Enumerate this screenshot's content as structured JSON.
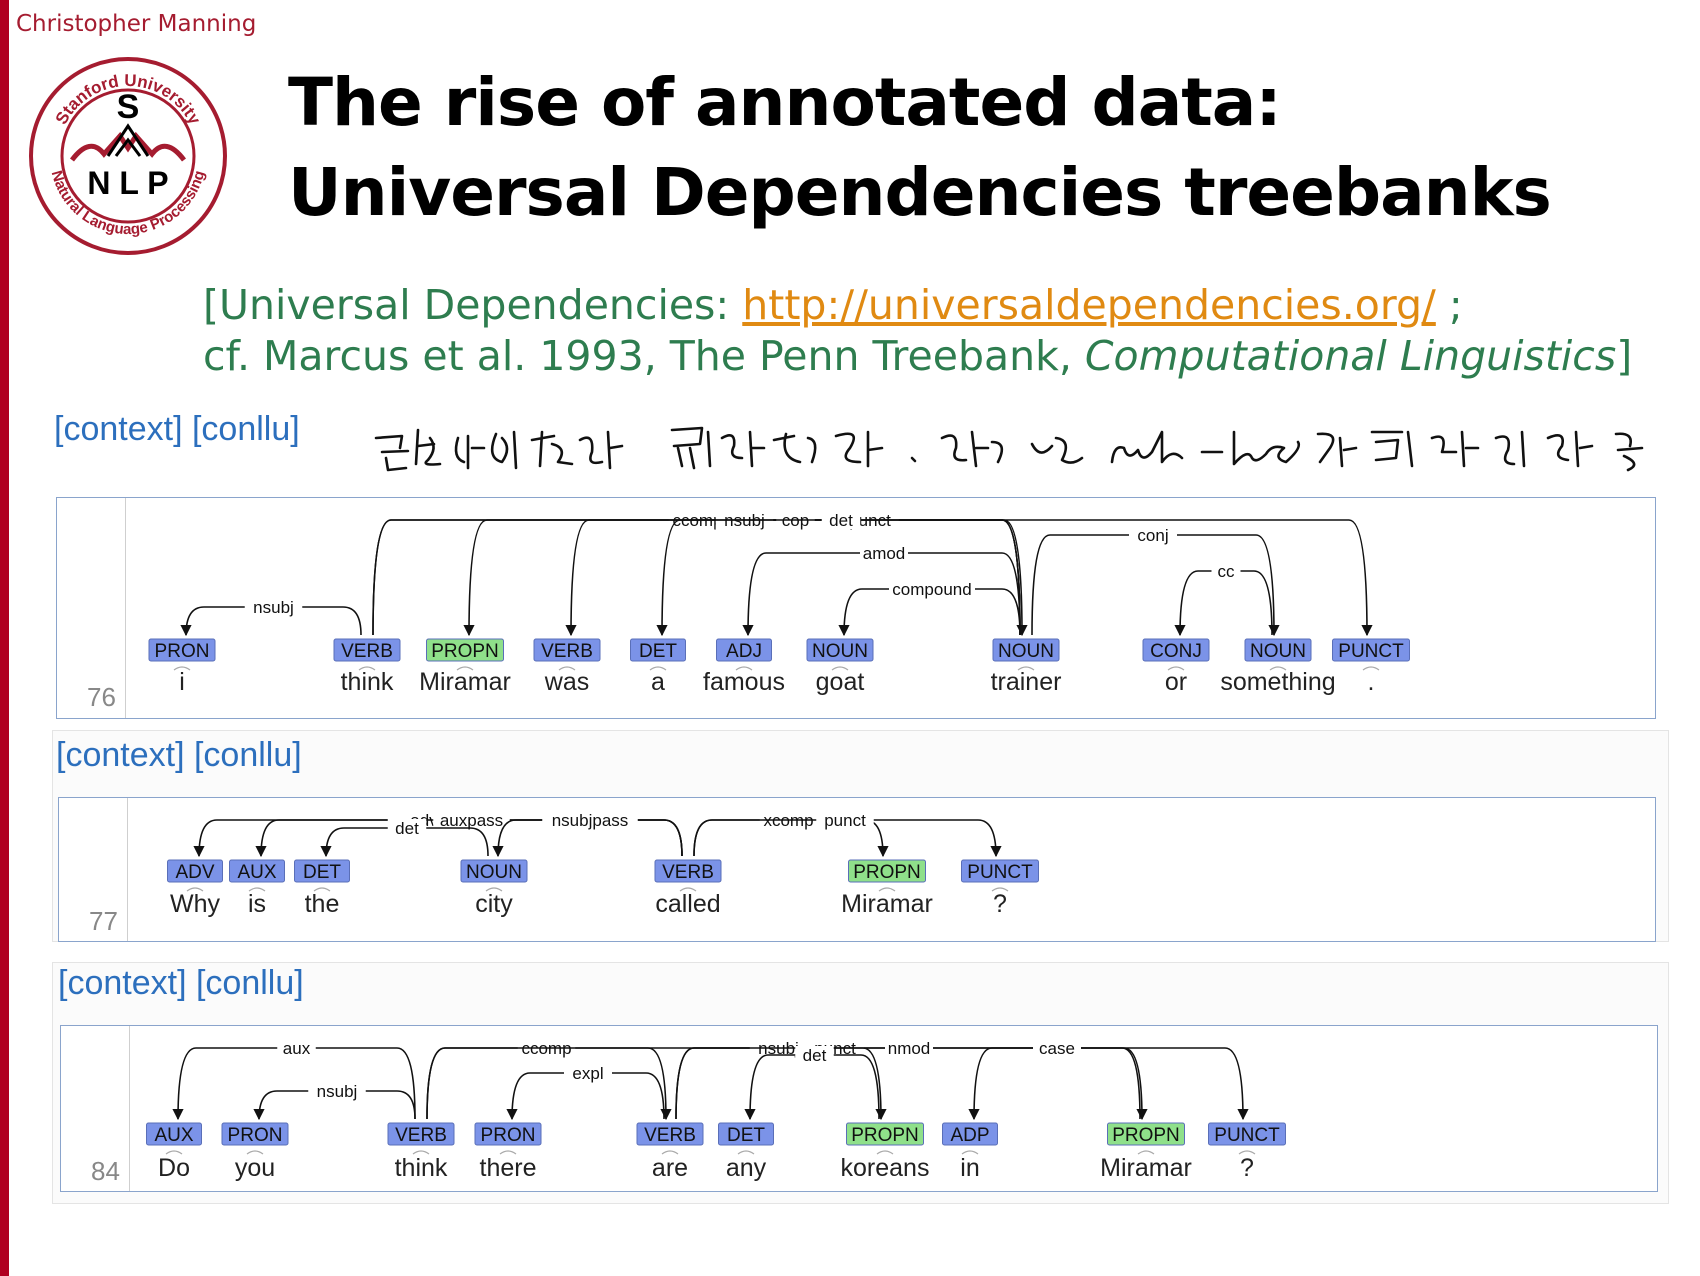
{
  "header": {
    "author": "Christopher Manning",
    "logo_text": {
      "top": "Stanford University",
      "bottom": "Natural Language Processing",
      "letter": "S",
      "acronym": "N L P"
    }
  },
  "slide": {
    "title_line1": "The rise of annotated data:",
    "title_line2": "Universal Dependencies treebanks",
    "citation": {
      "prefix": "[Universal Dependencies: ",
      "link": "http://universaldependencies.org/",
      "suffix": " ;",
      "line2_prefix": "cf. Marcus et al. 1993, The Penn Treebank, ",
      "line2_italic": "Computational Linguistics",
      "line2_suffix": "]"
    },
    "handwritten_note": "문장 사이의 관계를 태깅하는 방식. 일일이 다른 rule-base가 효과적이지 않아 등장"
  },
  "colors": {
    "pos_blue": "#7b93e8",
    "pos_green": "#8fe08a",
    "link": "#e08a12",
    "accent_red": "#a51c30",
    "cite_green": "#2e7d4f",
    "ctx_blue": "#2c6fbd"
  },
  "sentences": [
    {
      "id": "76",
      "context_label": "[context] [conllu]",
      "tokens": [
        {
          "word": "i",
          "pos": "PRON"
        },
        {
          "word": "think",
          "pos": "VERB"
        },
        {
          "word": "Miramar",
          "pos": "PROPN"
        },
        {
          "word": "was",
          "pos": "VERB"
        },
        {
          "word": "a",
          "pos": "DET"
        },
        {
          "word": "famous",
          "pos": "ADJ"
        },
        {
          "word": "goat",
          "pos": "NOUN"
        },
        {
          "word": "trainer",
          "pos": "NOUN"
        },
        {
          "word": "or",
          "pos": "CONJ"
        },
        {
          "word": "something",
          "pos": "NOUN"
        },
        {
          "word": ".",
          "pos": "PUNCT"
        }
      ],
      "arcs": [
        {
          "from": 1,
          "to": 0,
          "label": "nsubj"
        },
        {
          "from": 1,
          "to": 7,
          "label": "ccomp"
        },
        {
          "from": 1,
          "to": 10,
          "label": "punct"
        },
        {
          "from": 7,
          "to": 2,
          "label": "nsubj"
        },
        {
          "from": 7,
          "to": 3,
          "label": "cop"
        },
        {
          "from": 7,
          "to": 4,
          "label": "det"
        },
        {
          "from": 7,
          "to": 5,
          "label": "amod"
        },
        {
          "from": 7,
          "to": 6,
          "label": "compound"
        },
        {
          "from": 7,
          "to": 9,
          "label": "conj"
        },
        {
          "from": 9,
          "to": 8,
          "label": "cc"
        }
      ]
    },
    {
      "id": "77",
      "context_label": "[context] [conllu]",
      "tokens": [
        {
          "word": "Why",
          "pos": "ADV"
        },
        {
          "word": "is",
          "pos": "AUX"
        },
        {
          "word": "the",
          "pos": "DET"
        },
        {
          "word": "city",
          "pos": "NOUN"
        },
        {
          "word": "called",
          "pos": "VERB"
        },
        {
          "word": "Miramar",
          "pos": "PROPN"
        },
        {
          "word": "?",
          "pos": "PUNCT"
        }
      ],
      "arcs": [
        {
          "from": 4,
          "to": 0,
          "label": "advmod"
        },
        {
          "from": 4,
          "to": 1,
          "label": "auxpass"
        },
        {
          "from": 3,
          "to": 2,
          "label": "det"
        },
        {
          "from": 4,
          "to": 3,
          "label": "nsubjpass"
        },
        {
          "from": 4,
          "to": 5,
          "label": "xcomp"
        },
        {
          "from": 4,
          "to": 6,
          "label": "punct"
        }
      ]
    },
    {
      "id": "84",
      "context_label": "[context] [conllu]",
      "tokens": [
        {
          "word": "Do",
          "pos": "AUX"
        },
        {
          "word": "you",
          "pos": "PRON"
        },
        {
          "word": "think",
          "pos": "VERB"
        },
        {
          "word": "there",
          "pos": "PRON"
        },
        {
          "word": "are",
          "pos": "VERB"
        },
        {
          "word": "any",
          "pos": "DET"
        },
        {
          "word": "koreans",
          "pos": "PROPN"
        },
        {
          "word": "in",
          "pos": "ADP"
        },
        {
          "word": "Miramar",
          "pos": "PROPN"
        },
        {
          "word": "?",
          "pos": "PUNCT"
        }
      ],
      "arcs": [
        {
          "from": 2,
          "to": 0,
          "label": "aux"
        },
        {
          "from": 2,
          "to": 1,
          "label": "nsubj"
        },
        {
          "from": 2,
          "to": 4,
          "label": "ccomp"
        },
        {
          "from": 2,
          "to": 9,
          "label": "punct"
        },
        {
          "from": 4,
          "to": 3,
          "label": "expl"
        },
        {
          "from": 4,
          "to": 6,
          "label": "nsubj"
        },
        {
          "from": 4,
          "to": 8,
          "label": "nmod"
        },
        {
          "from": 6,
          "to": 5,
          "label": "det"
        },
        {
          "from": 8,
          "to": 7,
          "label": "case"
        }
      ]
    }
  ]
}
